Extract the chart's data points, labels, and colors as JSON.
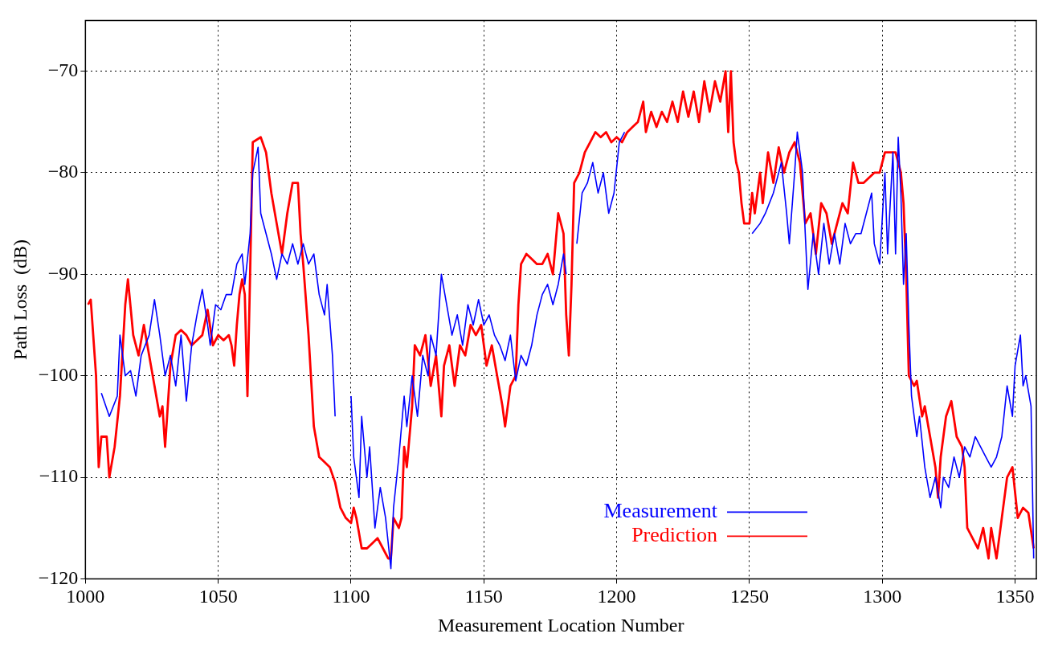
{
  "chart_data": {
    "type": "line",
    "xlabel": "Measurement Location Number",
    "ylabel": "Path Loss  (dB)",
    "xlim": [
      1000,
      1358
    ],
    "xticks": [
      1000,
      1050,
      1100,
      1150,
      1200,
      1250,
      1300,
      1350
    ],
    "ylim": [
      -120,
      -65
    ],
    "yticks": [
      -120,
      -110,
      -100,
      -90,
      -80,
      -70
    ],
    "grid": true,
    "legend": "bottom right",
    "line_style": "solid",
    "marker": "none",
    "series": [
      {
        "name": "Measurement",
        "color": "#0000ff",
        "x": [
          1006,
          1009,
          1012,
          1013,
          1015,
          1017,
          1019,
          1021,
          1024,
          1026,
          1028,
          1030,
          1032,
          1034,
          1036,
          1038,
          1040,
          1042,
          1044,
          1046,
          1047,
          1049,
          1051,
          1053,
          1055,
          1057,
          1059,
          1060,
          1062,
          1063,
          1065,
          1066,
          1068,
          1070,
          1072,
          1074,
          1076,
          1078,
          1080,
          1082,
          1084,
          1086,
          1088,
          1090,
          1091,
          1093,
          1094,
          1097,
          1100,
          1101,
          1103,
          1104,
          1106,
          1107,
          1109,
          1111,
          1113,
          1115,
          1116,
          1118,
          1120,
          1121,
          1123,
          1125,
          1127,
          1129,
          1130,
          1132,
          1134,
          1136,
          1138,
          1140,
          1142,
          1144,
          1146,
          1148,
          1150,
          1152,
          1154,
          1156,
          1158,
          1160,
          1162,
          1164,
          1166,
          1168,
          1170,
          1172,
          1174,
          1176,
          1178,
          1180,
          1181,
          1183,
          1185,
          1187,
          1189,
          1191,
          1193,
          1195,
          1197,
          1199,
          1201,
          1203,
          1227,
          1251,
          1254,
          1256,
          1259,
          1261,
          1262,
          1264,
          1265,
          1267,
          1268,
          1270,
          1271,
          1272,
          1274,
          1276,
          1278,
          1280,
          1282,
          1284,
          1286,
          1288,
          1290,
          1292,
          1294,
          1296,
          1297,
          1299,
          1301,
          1302,
          1304,
          1305,
          1306,
          1307,
          1308,
          1309,
          1310,
          1311,
          1313,
          1314,
          1316,
          1318,
          1320,
          1322,
          1323,
          1325,
          1327,
          1329,
          1331,
          1333,
          1335,
          1337,
          1339,
          1341,
          1343,
          1345,
          1347,
          1349,
          1350,
          1352,
          1353,
          1354,
          1356,
          1357
        ],
        "values": [
          -101.7,
          -104,
          -102,
          -96,
          -100,
          -99.5,
          -102,
          -98,
          -96,
          -92.5,
          -96,
          -100,
          -98,
          -101,
          -96,
          -102.5,
          -97,
          -94,
          -91.5,
          -95,
          -97,
          -93,
          -93.5,
          -92,
          -92,
          -89,
          -88,
          -91,
          -86,
          -80,
          -77.5,
          -84,
          -86,
          -88,
          -90.5,
          -88,
          -89,
          -87,
          -89,
          -87,
          -89,
          -88,
          -92,
          -94,
          -91,
          -98,
          -104,
          null,
          -102,
          -108,
          -112,
          -104,
          -110,
          -107,
          -115,
          -111,
          -114,
          -119,
          -113,
          -108,
          -102,
          -105,
          -100,
          -104,
          -98,
          -100,
          -96,
          -98,
          -90,
          -93,
          -96,
          -94,
          -97,
          -93,
          -95,
          -92.5,
          -95,
          -94,
          -96,
          -97,
          -98.5,
          -96,
          -100.5,
          -98,
          -99,
          -97,
          -94,
          -92,
          -91,
          -93,
          -91,
          -88,
          -90,
          null,
          -87,
          -82,
          -81,
          -79,
          -82,
          -80,
          -84,
          -82,
          -77,
          -76,
          null,
          -86,
          -85,
          -84,
          -82,
          -80,
          -79,
          -84,
          -87,
          -80,
          -76,
          -80,
          -86,
          -91.5,
          -86,
          -90,
          -85,
          -89,
          -86,
          -89,
          -85,
          -87,
          -86,
          -86,
          -84,
          -82,
          -87,
          -89,
          -80,
          -88,
          -78,
          -88,
          -76.5,
          -82,
          -91,
          -86,
          -95,
          -102,
          -106,
          -104,
          -109,
          -112,
          -110,
          -113,
          -110,
          -111,
          -108,
          -110,
          -107,
          -108,
          -106,
          -107,
          -108,
          -109,
          -108,
          -106,
          -101,
          -104,
          -99,
          -96,
          -101,
          -100,
          -103,
          -118
        ]
      },
      {
        "name": "Prediction",
        "color": "#ff0000",
        "x": [
          1001,
          1002,
          1004,
          1005,
          1006,
          1008,
          1009,
          1011,
          1013,
          1015,
          1016,
          1018,
          1020,
          1022,
          1024,
          1026,
          1028,
          1029,
          1030,
          1032,
          1034,
          1036,
          1038,
          1040,
          1042,
          1044,
          1046,
          1048,
          1050,
          1052,
          1054,
          1055,
          1056,
          1057,
          1058,
          1059,
          1060,
          1061,
          1062,
          1063,
          1066,
          1068,
          1070,
          1072,
          1074,
          1076,
          1078,
          1080,
          1081,
          1082,
          1084,
          1086,
          1088,
          1090,
          1092,
          1094,
          1096,
          1098,
          1100,
          1101,
          1102,
          1104,
          1106,
          1108,
          1110,
          1112,
          1114,
          1115,
          1116,
          1118,
          1119,
          1120,
          1121,
          1123,
          1124,
          1126,
          1128,
          1130,
          1132,
          1134,
          1135,
          1137,
          1139,
          1141,
          1143,
          1145,
          1147,
          1149,
          1151,
          1153,
          1155,
          1157,
          1158,
          1160,
          1162,
          1163,
          1164,
          1166,
          1168,
          1170,
          1172,
          1174,
          1176,
          1178,
          1180,
          1181,
          1182,
          1183,
          1184,
          1186,
          1188,
          1190,
          1192,
          1194,
          1196,
          1198,
          1200,
          1202,
          1204,
          1206,
          1208,
          1210,
          1211,
          1213,
          1215,
          1217,
          1219,
          1221,
          1223,
          1225,
          1227,
          1229,
          1231,
          1233,
          1235,
          1237,
          1239,
          1241,
          1242,
          1243,
          1244,
          1245,
          1246,
          1247,
          1248,
          1250,
          1251,
          1252,
          1254,
          1255,
          1257,
          1259,
          1261,
          1263,
          1265,
          1267,
          1269,
          1271,
          1273,
          1275,
          1277,
          1279,
          1281,
          1283,
          1285,
          1287,
          1289,
          1291,
          1293,
          1295,
          1297,
          1299,
          1301,
          1303,
          1305,
          1307,
          1308,
          1309,
          1310,
          1312,
          1313,
          1315,
          1316,
          1318,
          1320,
          1321,
          1322,
          1324,
          1326,
          1328,
          1330,
          1331,
          1332,
          1334,
          1336,
          1338,
          1340,
          1341,
          1343,
          1345,
          1347,
          1349,
          1351,
          1353,
          1355,
          1357
        ],
        "values": [
          -93,
          -92.5,
          -100,
          -109,
          -106,
          -106,
          -110,
          -107,
          -102,
          -93,
          -90.5,
          -96,
          -98,
          -95,
          -98,
          -101,
          -104,
          -103,
          -107,
          -99,
          -96,
          -95.5,
          -96,
          -97,
          -96.5,
          -96,
          -93.5,
          -97,
          -96,
          -96.5,
          -96,
          -97,
          -99,
          -95,
          -92,
          -90.5,
          -92,
          -102,
          -90,
          -77,
          -76.5,
          -78,
          -82,
          -85,
          -88,
          -84,
          -81,
          -81,
          -86,
          -89,
          -96,
          -105,
          -108,
          -108.5,
          -109,
          -110.5,
          -113,
          -114,
          -114.5,
          -113,
          -114,
          -117,
          -117,
          -116.5,
          -116,
          -117,
          -118,
          -118,
          -114,
          -115,
          -114,
          -107,
          -109,
          -103,
          -97,
          -98,
          -96,
          -101,
          -98,
          -104,
          -99,
          -97,
          -101,
          -97,
          -98,
          -95,
          -96,
          -95,
          -99,
          -97,
          -100,
          -103,
          -105,
          -101,
          -100,
          -93,
          -89,
          -88,
          -88.5,
          -89,
          -89,
          -88,
          -90,
          -84,
          -86,
          -94,
          -98,
          -91,
          -81,
          -80,
          -78,
          -77,
          -76,
          -76.5,
          -76,
          -77,
          -76.5,
          -77,
          -76,
          -75.5,
          -75,
          -73,
          -76,
          -74,
          -75.5,
          -74,
          -75,
          -73,
          -75,
          -72,
          -74.5,
          -72,
          -75,
          -71,
          -74,
          -71,
          -73,
          -70,
          -76,
          -70,
          -77,
          -79,
          -80,
          -83,
          -85,
          -85,
          -82,
          -84,
          -80,
          -83,
          -78,
          -81,
          -77.5,
          -80,
          -78,
          -77,
          -79,
          -85,
          -84,
          -88,
          -83,
          -84,
          -87,
          -85,
          -83,
          -84,
          -79,
          -81,
          -81,
          -80.5,
          -80,
          -80,
          -78,
          -78,
          -78,
          -80,
          -83,
          -90,
          -100,
          -101,
          -100.5,
          -104,
          -103,
          -106,
          -109,
          -112,
          -108,
          -104,
          -102.5,
          -106,
          -107,
          -109,
          -115,
          -116,
          -117,
          -115,
          -118,
          -115,
          -118,
          -114,
          -110,
          -109,
          -114,
          -113,
          -113.5,
          -117
        ]
      }
    ]
  }
}
